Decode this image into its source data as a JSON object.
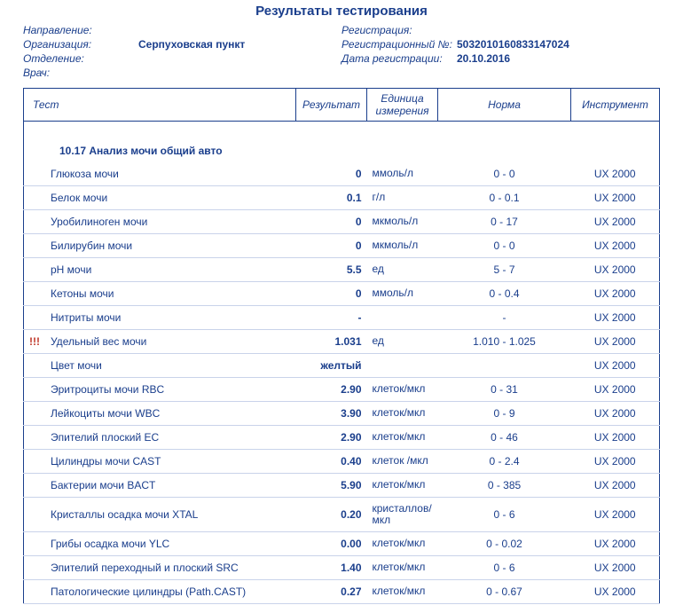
{
  "title": "Результаты тестирования",
  "header": {
    "left": {
      "direction": {
        "label": "Направление:",
        "value": ""
      },
      "org": {
        "label": "Организация:",
        "value": "Серпуховская пункт"
      },
      "dept": {
        "label": "Отделение:",
        "value": ""
      },
      "doctor": {
        "label": "Врач:",
        "value": ""
      }
    },
    "right": {
      "registration": {
        "label": "Регистрация:",
        "value": ""
      },
      "regno": {
        "label": "Регистрационный №:",
        "value": "5032010160833147024"
      },
      "regdate": {
        "label": "Дата регистрации:",
        "value": "20.10.2016"
      }
    }
  },
  "columns": {
    "test": "Тест",
    "result": "Результат",
    "unit": "Единица измерения",
    "norm": "Норма",
    "instr": "Инструмент"
  },
  "section": "10.17 Анализ мочи общий авто",
  "rows": [
    {
      "flag": "",
      "name": "Глюкоза мочи",
      "result": "0",
      "unit": "ммоль/л",
      "norm": "0 - 0",
      "instr": "UX 2000"
    },
    {
      "flag": "",
      "name": "Белок мочи",
      "result": "0.1",
      "unit": "г/л",
      "norm": "0 - 0.1",
      "instr": "UX 2000"
    },
    {
      "flag": "",
      "name": "Уробилиноген мочи",
      "result": "0",
      "unit": "мкмоль/л",
      "norm": "0 - 17",
      "instr": "UX 2000"
    },
    {
      "flag": "",
      "name": "Билирубин мочи",
      "result": "0",
      "unit": "мкмоль/л",
      "norm": "0 - 0",
      "instr": "UX 2000"
    },
    {
      "flag": "",
      "name": "pH мочи",
      "result": "5.5",
      "unit": "ед",
      "norm": "5 - 7",
      "instr": "UX 2000"
    },
    {
      "flag": "",
      "name": "Кетоны мочи",
      "result": "0",
      "unit": "ммоль/л",
      "norm": "0 - 0.4",
      "instr": "UX 2000"
    },
    {
      "flag": "",
      "name": "Нитриты мочи",
      "result": "-",
      "unit": "",
      "norm": "-",
      "instr": "UX 2000"
    },
    {
      "flag": "!!!",
      "name": "Удельный вес мочи",
      "result": "1.031",
      "unit": "ед",
      "norm": "1.010 - 1.025",
      "instr": "UX 2000"
    },
    {
      "flag": "",
      "name": "Цвет мочи",
      "result": "желтый",
      "unit": "",
      "norm": "",
      "instr": "UX 2000"
    },
    {
      "flag": "",
      "name": "Эритроциты мочи RBC",
      "result": "2.90",
      "unit": "клеток/мкл",
      "norm": "0 - 31",
      "instr": "UX 2000"
    },
    {
      "flag": "",
      "name": "Лейкоциты мочи WBC",
      "result": "3.90",
      "unit": "клеток/мкл",
      "norm": "0 - 9",
      "instr": "UX 2000"
    },
    {
      "flag": "",
      "name": "Эпителий плоский EC",
      "result": "2.90",
      "unit": "клеток/мкл",
      "norm": "0 - 46",
      "instr": "UX 2000"
    },
    {
      "flag": "",
      "name": "Цилиндры мочи CAST",
      "result": "0.40",
      "unit": "клеток /мкл",
      "norm": "0 - 2.4",
      "instr": "UX 2000"
    },
    {
      "flag": "",
      "name": "Бактерии мочи BACT",
      "result": "5.90",
      "unit": "клеток/мкл",
      "norm": "0 - 385",
      "instr": "UX 2000"
    },
    {
      "flag": "",
      "name": "Кристаллы осадка мочи XTAL",
      "result": "0.20",
      "unit": "кристаллов/мкл",
      "norm": "0 - 6",
      "instr": "UX 2000"
    },
    {
      "flag": "",
      "name": "Грибы осадка мочи YLC",
      "result": "0.00",
      "unit": "клеток/мкл",
      "norm": "0 - 0.02",
      "instr": "UX 2000"
    },
    {
      "flag": "",
      "name": "Эпителий переходный и плоский SRC",
      "result": "1.40",
      "unit": "клеток/мкл",
      "norm": "0 - 6",
      "instr": "UX 2000"
    },
    {
      "flag": "",
      "name": "Патологические цилиндры (Path.CAST)",
      "result": "0.27",
      "unit": "клеток/мкл",
      "norm": "0 - 0.67",
      "instr": "UX 2000"
    }
  ]
}
